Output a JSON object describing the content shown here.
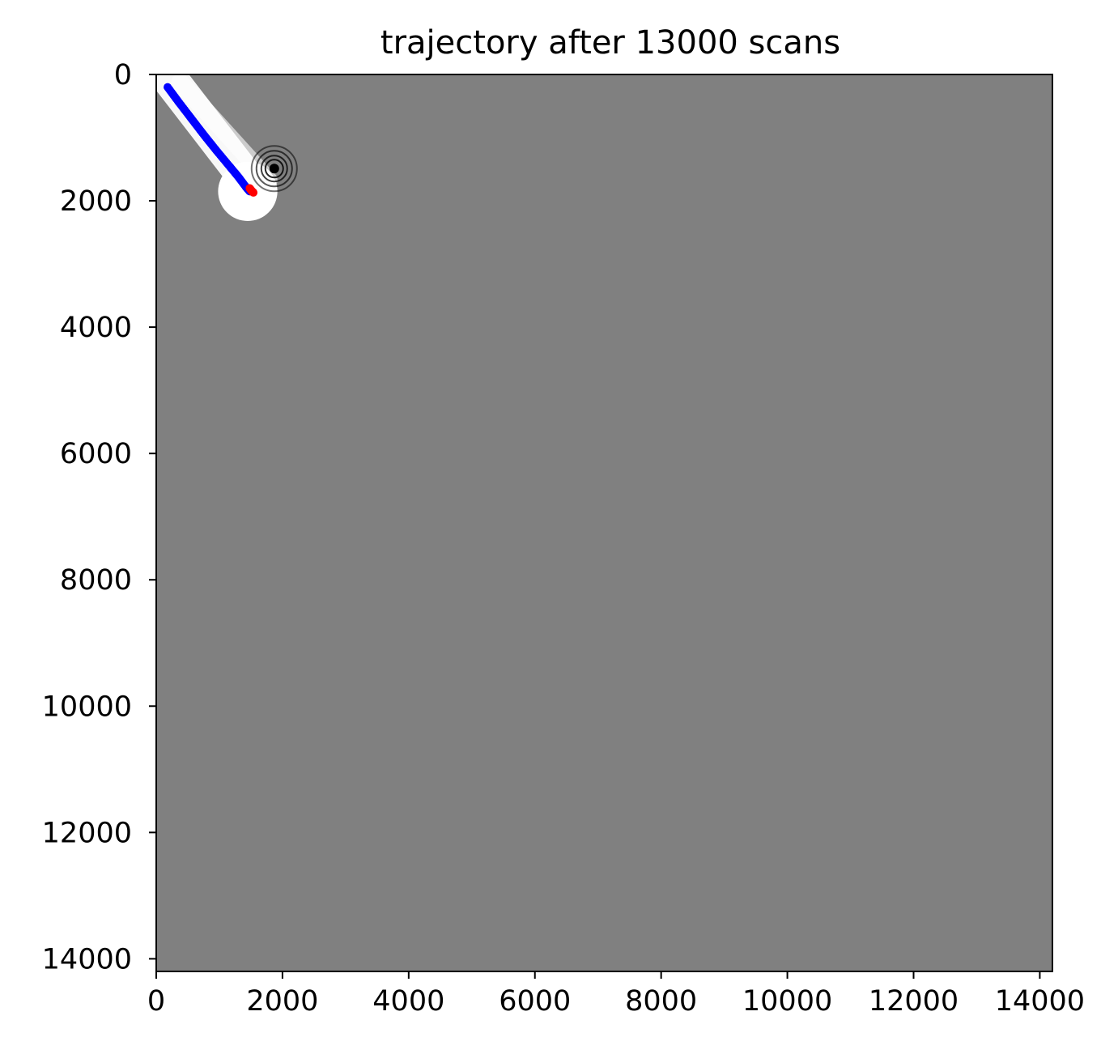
{
  "chart_data": {
    "type": "scatter",
    "title": "trajectory after 13000 scans",
    "xlabel": "",
    "ylabel": "",
    "xlim": [
      0,
      14200
    ],
    "ylim": [
      14200,
      0
    ],
    "y_axis_inverted": true,
    "grid": false,
    "legend": "none",
    "x_ticks": [
      0,
      2000,
      4000,
      6000,
      8000,
      10000,
      12000,
      14000
    ],
    "x_tick_labels": [
      "0",
      "2000",
      "4000",
      "6000",
      "8000",
      "10000",
      "12000",
      "14000"
    ],
    "y_ticks": [
      0,
      2000,
      4000,
      6000,
      8000,
      10000,
      12000,
      14000
    ],
    "y_tick_labels": [
      "0",
      "2000",
      "4000",
      "6000",
      "8000",
      "10000",
      "12000",
      "14000"
    ],
    "background": {
      "description": "occupancy grid map, unknown cells gray",
      "unknown_color": "#808080",
      "free_color": "#ffffff",
      "occupied_color": "#000000",
      "explored_corridor": [
        [
          200,
          50
        ],
        [
          1550,
          1800
        ]
      ],
      "explored_disk_center": [
        1450,
        1850
      ],
      "explored_disk_radius": 470,
      "obstacle_rings_center": [
        1870,
        1490
      ]
    },
    "series": [
      {
        "marker_color": "#0000ff",
        "x": [
          180,
          350,
          550,
          750,
          950,
          1150,
          1300,
          1420,
          1480
        ],
        "y": [
          200,
          430,
          690,
          950,
          1200,
          1440,
          1620,
          1780,
          1850
        ]
      },
      {
        "marker_color": "#ff0000",
        "x": [
          1480,
          1510,
          1540
        ],
        "y": [
          1800,
          1840,
          1870
        ]
      }
    ]
  }
}
